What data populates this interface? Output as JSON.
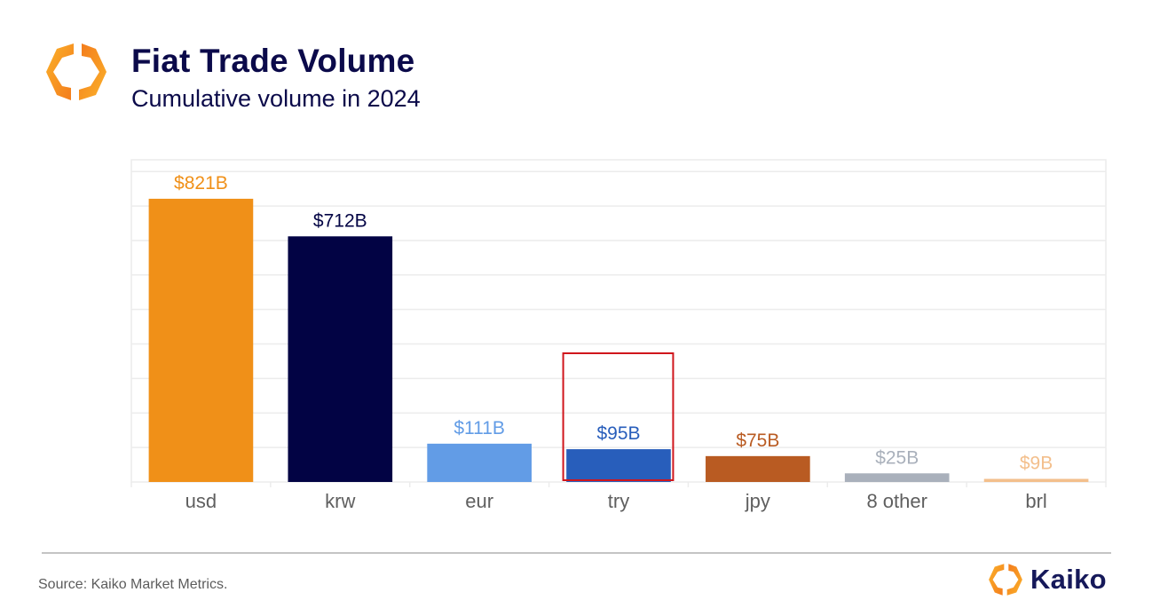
{
  "header": {
    "logo_icon": "kaiko-hexagon-logo-icon",
    "title": "Fiat Trade Volume",
    "subtitle": "Cumulative volume in 2024"
  },
  "chart_data": {
    "type": "bar",
    "title": "Fiat Trade Volume",
    "subtitle": "Cumulative volume in 2024",
    "xlabel": "",
    "ylabel": "",
    "unit": "USD billions",
    "categories": [
      "usd",
      "krw",
      "eur",
      "try",
      "jpy",
      "8 other",
      "brl"
    ],
    "values": [
      821,
      712,
      111,
      95,
      75,
      25,
      9
    ],
    "data_labels": [
      "$821B",
      "$712B",
      "$111B",
      "$95B",
      "$75B",
      "$25B",
      "$9B"
    ],
    "colors": [
      "#f09018",
      "#020344",
      "#629ce6",
      "#285ebb",
      "#b95b22",
      "#a9b0bb",
      "#f3bf8c"
    ],
    "ylim": [
      0,
      934
    ],
    "y_gridline_step": 100,
    "y_tick_labels_shown": false,
    "grid": true,
    "legend": "none",
    "highlight": {
      "category": "try",
      "style": "red outline box",
      "color": "#d0161c"
    }
  },
  "footer": {
    "source": "Source: Kaiko Market Metrics.",
    "brand_name": "Kaiko",
    "brand_icon": "kaiko-hexagon-logo-icon"
  },
  "colors": {
    "title": "#0b0a4a",
    "grid": "#ececec",
    "tick_text": "#5f5f5f",
    "highlight": "#d0161c"
  }
}
